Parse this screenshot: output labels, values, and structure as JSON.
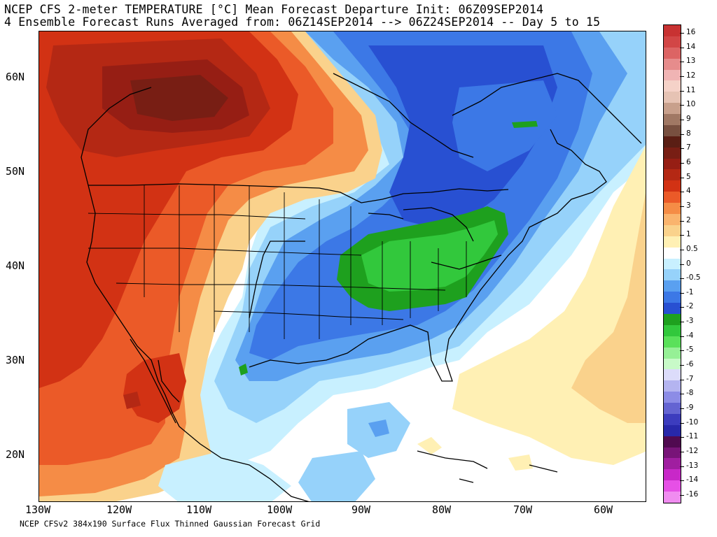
{
  "title": {
    "line1": "NCEP CFS 2-meter TEMPERATURE [°C] Mean Forecast Departure Init: 06Z09SEP2014",
    "line2": "4 Ensemble Forecast Runs Averaged from: 06Z14SEP2014 --> 06Z24SEP2014 -- Day 5 to 15"
  },
  "footer": "NCEP CFSv2 384x190 Surface Flux Thinned Gaussian Forecast Grid",
  "lat_labels": [
    "60N",
    "50N",
    "40N",
    "30N",
    "20N"
  ],
  "lon_labels": [
    "130W",
    "120W",
    "110W",
    "100W",
    "90W",
    "80W",
    "70W",
    "60W"
  ],
  "colorbar": {
    "labels": [
      "16",
      "14",
      "13",
      "12",
      "11",
      "10",
      "9",
      "8",
      "7",
      "6",
      "5",
      "4",
      "3",
      "2",
      "1",
      "0.5",
      "0",
      "-0.5",
      "-1",
      "-2",
      "-3",
      "-4",
      "-5",
      "-6",
      "-7",
      "-8",
      "-9",
      "-10",
      "-11",
      "-12",
      "-13",
      "-14",
      "-16"
    ],
    "colors": [
      "#c83232",
      "#d24646",
      "#dc6464",
      "#e68c8c",
      "#f0b4b4",
      "#f5d2c8",
      "#e6c3b4",
      "#c8a08c",
      "#a07864",
      "#785040",
      "#5a1e14",
      "#781e14",
      "#961e14",
      "#b42814",
      "#d23214",
      "#eb5a28",
      "#f58c46",
      "#fab46e",
      "#fad28c",
      "#fff0b4",
      "#ffffff",
      "#c8f0ff",
      "#96d2fa",
      "#5aa0f0",
      "#3c78e6",
      "#2850d2",
      "#1ea01e",
      "#32c83c",
      "#5ae15a",
      "#96f096",
      "#c8fac8",
      "#dcdcfa",
      "#b4b4f0",
      "#8c8ce6",
      "#6464d2",
      "#3c3cbe",
      "#2828aa",
      "#500a50",
      "#781478",
      "#a01ea0",
      "#c828c8",
      "#e650e6",
      "#f08cf0"
    ]
  }
}
